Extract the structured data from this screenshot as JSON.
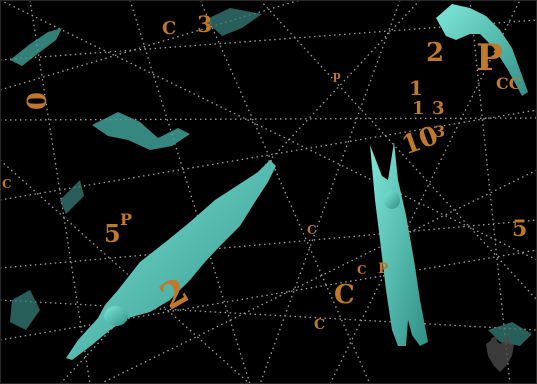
{
  "scene": {
    "background_color": "#000000",
    "grid_color": "#bdbdbd",
    "figure_color": "#5fd6c6",
    "glyph_color": "#c0782a",
    "grid_style": "dotted intersecting lines",
    "figures": [
      "floating-figure",
      "floating-figure",
      "floating-figure",
      "floating-figure",
      "floating-figure",
      "floating-figure"
    ],
    "emblem": "double-headed-eagle-emblem"
  },
  "glyphs": {
    "g1": "C",
    "g2": "3",
    "g3": "2",
    "g4": "P",
    "g5": "CC",
    "g6": "0",
    "g7": "p",
    "g8": "1",
    "g9": "1",
    "g10": "3",
    "g11": "10",
    "g12": "3",
    "g13": "5",
    "g14": "P",
    "g15": "C",
    "g16": "2",
    "g17": "C",
    "g18": "C",
    "g19": "P",
    "g20": "C",
    "g21": "5",
    "g22": "C"
  }
}
